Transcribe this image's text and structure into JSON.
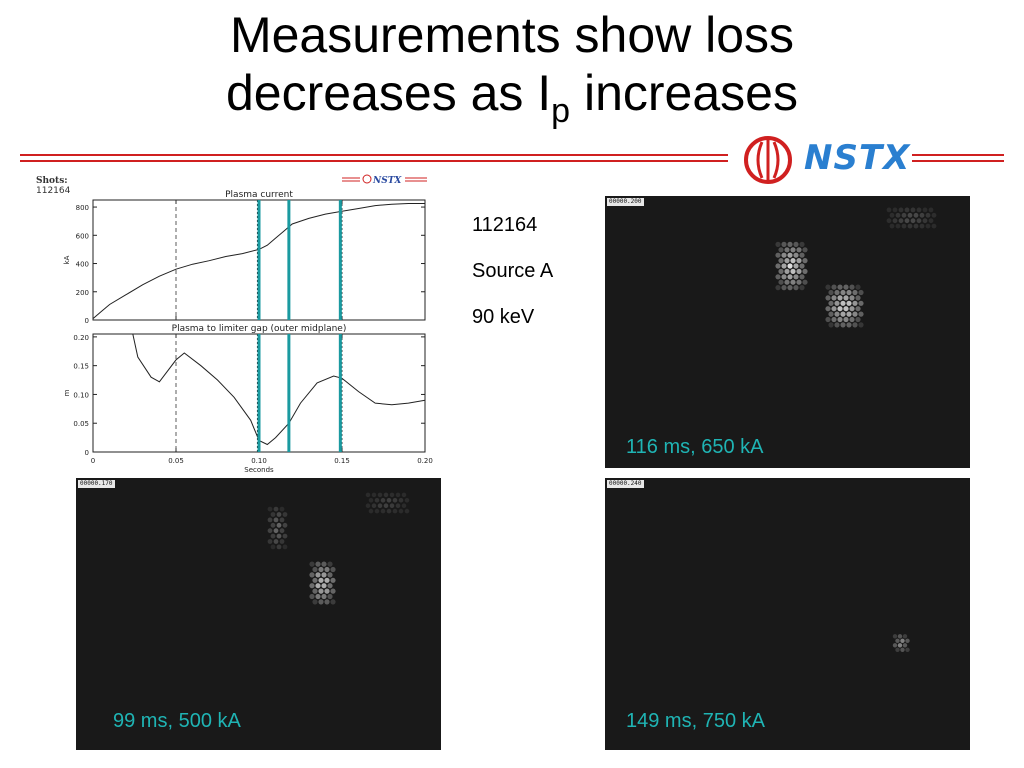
{
  "title": {
    "main_line1": "Measurements show loss",
    "main_line2_a": "decreases as I",
    "main_line2_sub": "p",
    "main_line2_b": " increases"
  },
  "logo": {
    "text": "NSTX"
  },
  "info": {
    "shot": "112164",
    "source": "Source A",
    "energy": "90 keV"
  },
  "colors": {
    "accent_red": "#d02020",
    "logo_blue": "#2a7fd0",
    "label_cyan": "#1fb4b4",
    "marker_teal": "#1a9aa0"
  },
  "cameras": [
    {
      "stamp": "00000.200",
      "label": "116 ms, 650 kA"
    },
    {
      "stamp": "00000.170",
      "label": "99 ms, 500 kA"
    },
    {
      "stamp": "00000.240",
      "label": "149 ms, 750 kA"
    }
  ],
  "chart_data": [
    {
      "type": "line",
      "shots_label": "Shots:",
      "shot": "112164",
      "mini_logo": "NSTX",
      "title": "Plasma current",
      "xlabel": "",
      "ylabel": "kA",
      "xlim": [
        0,
        0.2
      ],
      "ylim": [
        0,
        850
      ],
      "yticks": [
        "0",
        "200",
        "400",
        "600",
        "800"
      ],
      "ytick_values": [
        0,
        200,
        400,
        600,
        800
      ],
      "x": [
        0,
        0.005,
        0.01,
        0.02,
        0.03,
        0.04,
        0.05,
        0.06,
        0.07,
        0.08,
        0.09,
        0.1,
        0.105,
        0.11,
        0.115,
        0.12,
        0.13,
        0.14,
        0.15,
        0.16,
        0.17,
        0.18,
        0.19,
        0.2
      ],
      "values": [
        10,
        60,
        110,
        180,
        250,
        310,
        360,
        395,
        420,
        450,
        470,
        500,
        530,
        580,
        630,
        680,
        720,
        750,
        770,
        790,
        810,
        820,
        825,
        825
      ],
      "dashed_x": 0.05,
      "marker_lines_x": [
        0.1,
        0.118,
        0.149
      ],
      "dotted_x": [
        0.099,
        0.15
      ]
    },
    {
      "type": "line",
      "title": "Plasma to limiter gap (outer midplane)",
      "xlabel": "Seconds",
      "ylabel": "m",
      "xlim": [
        0,
        0.2
      ],
      "ylim": [
        0,
        0.205
      ],
      "yticks": [
        "0",
        "0.05",
        "0.10",
        "0.15",
        "0.20"
      ],
      "ytick_values": [
        0,
        0.05,
        0.1,
        0.15,
        0.2
      ],
      "xticks": [
        "0",
        "0.05",
        "0.10",
        "0.15",
        "0.20"
      ],
      "xtick_values": [
        0,
        0.05,
        0.1,
        0.15,
        0.2
      ],
      "x": [
        0.024,
        0.027,
        0.035,
        0.04,
        0.05,
        0.055,
        0.065,
        0.075,
        0.085,
        0.095,
        0.1,
        0.105,
        0.11,
        0.118,
        0.125,
        0.135,
        0.145,
        0.15,
        0.16,
        0.17,
        0.18,
        0.19,
        0.2
      ],
      "values": [
        0.205,
        0.165,
        0.13,
        0.122,
        0.16,
        0.172,
        0.15,
        0.125,
        0.095,
        0.055,
        0.02,
        0.013,
        0.025,
        0.05,
        0.085,
        0.12,
        0.132,
        0.128,
        0.105,
        0.085,
        0.082,
        0.085,
        0.09
      ],
      "dashed_x": 0.05,
      "marker_lines_x": [
        0.1,
        0.118,
        0.149
      ],
      "dotted_x": [
        0.099,
        0.15
      ]
    }
  ]
}
